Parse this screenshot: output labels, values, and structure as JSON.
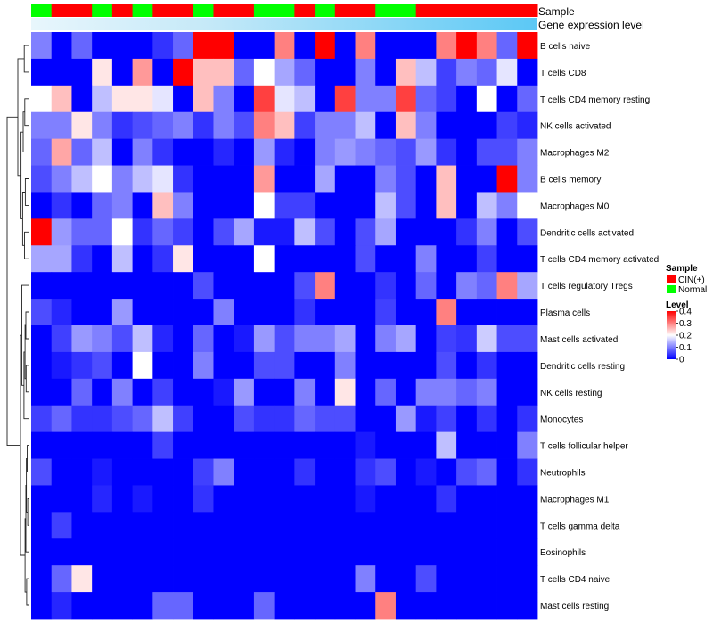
{
  "chart_data": {
    "type": "heatmap",
    "annotation_tracks": [
      "Sample",
      "Gene expression level"
    ],
    "sample_groups": [
      "Normal",
      "CIN(+)",
      "CIN(+)",
      "Normal",
      "CIN(+)",
      "Normal",
      "CIN(+)",
      "CIN(+)",
      "Normal",
      "CIN(+)",
      "CIN(+)",
      "Normal",
      "Normal",
      "CIN(+)",
      "Normal",
      "CIN(+)",
      "CIN(+)",
      "Normal",
      "Normal",
      "CIN(+)",
      "CIN(+)",
      "CIN(+)",
      "CIN(+)",
      "CIN(+)",
      "CIN(+)"
    ],
    "rows": [
      "B cells naive",
      "T cells CD8",
      "T cells CD4 memory resting",
      "NK cells activated",
      "Macrophages M2",
      "B cells memory",
      "Macrophages M0",
      "Dendritic cells activated",
      "T cells CD4 memory activated",
      "T cells regulatory  Tregs",
      "Plasma cells",
      "Mast cells activated",
      "Dendritic cells resting",
      "NK cells resting",
      "Monocytes",
      "T cells follicular helper",
      "Neutrophils",
      "Macrophages M1",
      "T cells gamma delta",
      "Eosinophils",
      "T cells CD4 naive",
      "Mast cells resting"
    ],
    "values": [
      [
        0.1,
        0.0,
        0.08,
        0.0,
        0.0,
        0.0,
        0.04,
        0.08,
        0.4,
        0.4,
        0.0,
        0.0,
        0.3,
        0.0,
        0.4,
        0.0,
        0.3,
        0.0,
        0.0,
        0.0,
        0.3,
        0.4,
        0.3,
        0.08,
        0.4
      ],
      [
        0.0,
        0.0,
        0.0,
        0.22,
        0.0,
        0.28,
        0.0,
        0.4,
        0.25,
        0.25,
        0.08,
        0.2,
        0.13,
        0.08,
        0.0,
        0.0,
        0.1,
        0.0,
        0.25,
        0.15,
        0.05,
        0.1,
        0.08,
        0.18,
        0.0
      ],
      [
        0.2,
        0.25,
        0.0,
        0.15,
        0.22,
        0.22,
        0.18,
        0.0,
        0.25,
        0.1,
        0.0,
        0.35,
        0.18,
        0.15,
        0.0,
        0.35,
        0.1,
        0.1,
        0.35,
        0.08,
        0.05,
        0.0,
        0.2,
        0.0,
        0.08
      ],
      [
        0.1,
        0.1,
        0.22,
        0.1,
        0.04,
        0.06,
        0.08,
        0.1,
        0.04,
        0.1,
        0.06,
        0.3,
        0.25,
        0.05,
        0.1,
        0.1,
        0.15,
        0.0,
        0.25,
        0.1,
        0.0,
        0.0,
        0.0,
        0.05,
        0.03
      ],
      [
        0.08,
        0.27,
        0.08,
        0.15,
        0.0,
        0.1,
        0.04,
        0.0,
        0.0,
        0.03,
        0.0,
        0.12,
        0.03,
        0.0,
        0.1,
        0.12,
        0.1,
        0.08,
        0.06,
        0.12,
        0.04,
        0.0,
        0.06,
        0.06,
        0.1
      ],
      [
        0.06,
        0.1,
        0.15,
        0.2,
        0.1,
        0.15,
        0.18,
        0.04,
        0.0,
        0.0,
        0.0,
        0.28,
        0.0,
        0.0,
        0.13,
        0.0,
        0.0,
        0.1,
        0.06,
        0.0,
        0.25,
        0.0,
        0.0,
        0.4,
        0.1
      ],
      [
        0.0,
        0.04,
        0.0,
        0.08,
        0.1,
        0.0,
        0.25,
        0.1,
        0.0,
        0.0,
        0.0,
        0.2,
        0.05,
        0.05,
        0.0,
        0.0,
        0.0,
        0.15,
        0.06,
        0.0,
        0.25,
        0.0,
        0.15,
        0.1,
        0.2
      ],
      [
        0.4,
        0.12,
        0.08,
        0.08,
        0.2,
        0.04,
        0.08,
        0.05,
        0.0,
        0.06,
        0.13,
        0.02,
        0.02,
        0.15,
        0.06,
        0.0,
        0.06,
        0.13,
        0.0,
        0.0,
        0.0,
        0.04,
        0.1,
        0.0,
        0.06
      ],
      [
        0.13,
        0.13,
        0.04,
        0.0,
        0.15,
        0.0,
        0.04,
        0.22,
        0.0,
        0.0,
        0.0,
        0.2,
        0.0,
        0.0,
        0.0,
        0.0,
        0.06,
        0.0,
        0.0,
        0.1,
        0.0,
        0.0,
        0.05,
        0.0,
        0.0
      ],
      [
        0.0,
        0.0,
        0.0,
        0.0,
        0.0,
        0.0,
        0.0,
        0.0,
        0.06,
        0.0,
        0.0,
        0.0,
        0.0,
        0.06,
        0.3,
        0.0,
        0.0,
        0.04,
        0.0,
        0.08,
        0.0,
        0.1,
        0.08,
        0.3,
        0.13
      ],
      [
        0.06,
        0.03,
        0.0,
        0.0,
        0.12,
        0.0,
        0.0,
        0.0,
        0.0,
        0.1,
        0.0,
        0.0,
        0.0,
        0.04,
        0.0,
        0.0,
        0.0,
        0.05,
        0.0,
        0.0,
        0.3,
        0.0,
        0.0,
        0.0,
        0.0
      ],
      [
        0.0,
        0.05,
        0.12,
        0.1,
        0.06,
        0.15,
        0.03,
        0.0,
        0.08,
        0.0,
        0.02,
        0.12,
        0.06,
        0.1,
        0.1,
        0.13,
        0.0,
        0.1,
        0.13,
        0.0,
        0.05,
        0.04,
        0.16,
        0.06,
        0.06
      ],
      [
        0.0,
        0.02,
        0.04,
        0.06,
        0.0,
        0.2,
        0.0,
        0.0,
        0.1,
        0.0,
        0.0,
        0.06,
        0.06,
        0.0,
        0.0,
        0.1,
        0.0,
        0.0,
        0.0,
        0.0,
        0.06,
        0.0,
        0.04,
        0.0,
        0.0
      ],
      [
        0.0,
        0.0,
        0.08,
        0.0,
        0.1,
        0.0,
        0.05,
        0.0,
        0.0,
        0.02,
        0.12,
        0.0,
        0.0,
        0.1,
        0.0,
        0.22,
        0.0,
        0.08,
        0.0,
        0.1,
        0.1,
        0.08,
        0.1,
        0.0,
        0.0
      ],
      [
        0.05,
        0.08,
        0.04,
        0.04,
        0.06,
        0.08,
        0.15,
        0.05,
        0.0,
        0.0,
        0.06,
        0.04,
        0.04,
        0.08,
        0.06,
        0.06,
        0.0,
        0.0,
        0.12,
        0.02,
        0.05,
        0.0,
        0.04,
        0.0,
        0.04
      ],
      [
        0.0,
        0.0,
        0.0,
        0.0,
        0.0,
        0.0,
        0.05,
        0.0,
        0.0,
        0.0,
        0.0,
        0.0,
        0.0,
        0.0,
        0.0,
        0.0,
        0.02,
        0.0,
        0.0,
        0.0,
        0.15,
        0.0,
        0.0,
        0.0,
        0.1
      ],
      [
        0.06,
        0.0,
        0.0,
        0.02,
        0.0,
        0.0,
        0.0,
        0.0,
        0.05,
        0.1,
        0.0,
        0.0,
        0.0,
        0.04,
        0.0,
        0.0,
        0.04,
        0.06,
        0.0,
        0.02,
        0.0,
        0.06,
        0.08,
        0.0,
        0.04
      ],
      [
        0.0,
        0.0,
        0.0,
        0.03,
        0.0,
        0.02,
        0.0,
        0.0,
        0.04,
        0.0,
        0.0,
        0.0,
        0.0,
        0.0,
        0.0,
        0.0,
        0.02,
        0.0,
        0.0,
        0.0,
        0.04,
        0.0,
        0.0,
        0.0,
        0.0
      ],
      [
        0.0,
        0.05,
        0.0,
        0.0,
        0.0,
        0.0,
        0.0,
        0.0,
        0.0,
        0.0,
        0.0,
        0.0,
        0.0,
        0.0,
        0.0,
        0.0,
        0.0,
        0.0,
        0.0,
        0.0,
        0.0,
        0.0,
        0.0,
        0.0,
        0.0
      ],
      [
        0.0,
        0.0,
        0.0,
        0.0,
        0.0,
        0.0,
        0.0,
        0.0,
        0.0,
        0.0,
        0.0,
        0.0,
        0.0,
        0.0,
        0.0,
        0.0,
        0.0,
        0.0,
        0.0,
        0.0,
        0.0,
        0.0,
        0.0,
        0.0,
        0.0
      ],
      [
        0.0,
        0.08,
        0.22,
        0.0,
        0.0,
        0.0,
        0.0,
        0.0,
        0.0,
        0.0,
        0.0,
        0.0,
        0.0,
        0.0,
        0.0,
        0.0,
        0.1,
        0.0,
        0.0,
        0.06,
        0.0,
        0.0,
        0.0,
        0.0,
        0.0
      ],
      [
        0.0,
        0.03,
        0.0,
        0.0,
        0.0,
        0.0,
        0.08,
        0.08,
        0.0,
        0.0,
        0.0,
        0.08,
        0.0,
        0.0,
        0.0,
        0.0,
        0.0,
        0.3,
        0.0,
        0.0,
        0.0,
        0.0,
        0.0,
        0.0,
        0.0
      ]
    ],
    "legend_sample": {
      "title": "Sample",
      "entries": [
        {
          "label": "CIN(+)",
          "color": "#ff0000"
        },
        {
          "label": "Normal",
          "color": "#00ff00"
        }
      ]
    },
    "legend_level": {
      "title": "Level",
      "ticks": [
        "0.4",
        "0.3",
        "0.2",
        "0.1",
        "0"
      ],
      "tick_values": [
        0.4,
        0.3,
        0.2,
        0.1,
        0
      ],
      "range": [
        0,
        0.4
      ]
    },
    "colors": {
      "low": "#0000ff",
      "mid": "#ffffff",
      "high": "#ff0000",
      "expr_track": "#5bc8f5",
      "dendro": "#222222"
    }
  }
}
